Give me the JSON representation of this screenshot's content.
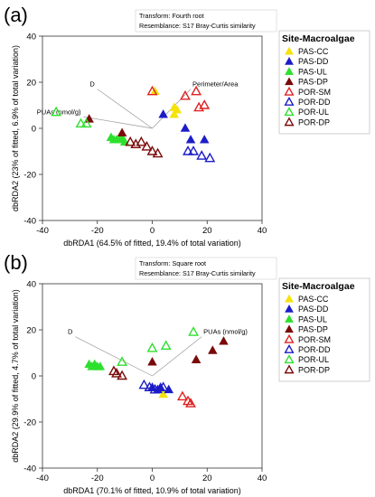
{
  "figure": {
    "panels": [
      {
        "panel_label": "(a)",
        "transform_line": "Transform: Fourth root",
        "resemblance_line": "Resemblance: S17 Bray-Curtis similarity",
        "legend_title": "Site-Macroalgae"
      },
      {
        "panel_label": "(b)",
        "transform_line": "Transform: Square root",
        "resemblance_line": "Resemblance: S17 Bray-Curtis similarity",
        "legend_title": "Site-Macroalgae"
      }
    ]
  },
  "chart_data": [
    {
      "type": "scatter",
      "title": "",
      "xlabel": "dbRDA1 (64.5% of fitted, 19.4% of total variation)",
      "ylabel": "dbRDA2 (23% of fitted, 6.9% of total variation)",
      "xlim": [
        -40,
        40
      ],
      "ylim": [
        -40,
        40
      ],
      "xticks": [
        -40,
        -20,
        0,
        20,
        40
      ],
      "yticks": [
        -40,
        -20,
        0,
        20,
        40
      ],
      "legend_position": "right",
      "vectors": [
        {
          "label": "Perimeter/Area",
          "x": 14,
          "y": 17
        },
        {
          "label": "D",
          "x": -20,
          "y": 17
        },
        {
          "label": "PUAs (nmol/g)",
          "x": -25,
          "y": 5
        }
      ],
      "series": [
        {
          "name": "PAS-CC",
          "marker": "filled",
          "color": "#f5e20a",
          "points": [
            [
              1,
              16
            ],
            [
              8,
              9
            ],
            [
              8,
              6
            ],
            [
              9,
              8
            ]
          ]
        },
        {
          "name": "PAS-DD",
          "marker": "filled",
          "color": "#1c1cc8",
          "points": [
            [
              4,
              6
            ],
            [
              12,
              0
            ],
            [
              14,
              -5
            ],
            [
              19,
              -5
            ]
          ]
        },
        {
          "name": "PAS-UL",
          "marker": "filled",
          "color": "#2ee02e",
          "points": [
            [
              -15,
              -4
            ],
            [
              -14,
              -5
            ],
            [
              -13,
              -5
            ],
            [
              -12,
              -5
            ],
            [
              -11,
              -4
            ],
            [
              -10,
              -6
            ]
          ]
        },
        {
          "name": "PAS-DP",
          "marker": "filled",
          "color": "#7a0a0a",
          "points": [
            [
              -23,
              4
            ],
            [
              -11,
              -2
            ]
          ]
        },
        {
          "name": "POR-SM",
          "marker": "open",
          "color": "#e02020",
          "points": [
            [
              0,
              16
            ],
            [
              12,
              14
            ],
            [
              16,
              16
            ],
            [
              17,
              9
            ],
            [
              19,
              10
            ]
          ]
        },
        {
          "name": "POR-DD",
          "marker": "open",
          "color": "#1c1cc8",
          "points": [
            [
              13,
              -10
            ],
            [
              15,
              -10
            ],
            [
              18,
              -12
            ],
            [
              21,
              -13
            ]
          ]
        },
        {
          "name": "POR-UL",
          "marker": "open",
          "color": "#2ee02e",
          "points": [
            [
              -35,
              7
            ],
            [
              -26,
              2
            ],
            [
              -24,
              2
            ]
          ]
        },
        {
          "name": "POR-DP",
          "marker": "open",
          "color": "#7a0a0a",
          "points": [
            [
              -8,
              -6
            ],
            [
              -6,
              -7
            ],
            [
              -2,
              -8
            ],
            [
              0,
              -10
            ],
            [
              2,
              -11
            ],
            [
              -4,
              -6
            ]
          ]
        }
      ]
    },
    {
      "type": "scatter",
      "title": "",
      "xlabel": "dbRDA1 (70.1% of fitted, 10.9% of total variation)",
      "ylabel": "dbRDA2 (29.9% of fitted, 4.7% of total variation)",
      "xlim": [
        -40,
        40
      ],
      "ylim": [
        -40,
        40
      ],
      "xticks": [
        -40,
        -20,
        0,
        20,
        40
      ],
      "yticks": [
        -40,
        -20,
        0,
        20,
        40
      ],
      "legend_position": "right",
      "vectors": [
        {
          "label": "PUAs (nmol/g)",
          "x": 18,
          "y": 17
        },
        {
          "label": "D",
          "x": -28,
          "y": 17
        }
      ],
      "series": [
        {
          "name": "PAS-CC",
          "marker": "filled",
          "color": "#f5e20a",
          "points": [
            [
              3,
              -6
            ],
            [
              4,
              -8
            ]
          ]
        },
        {
          "name": "PAS-DD",
          "marker": "filled",
          "color": "#1c1cc8",
          "points": [
            [
              0,
              -5
            ],
            [
              2,
              -6
            ],
            [
              3,
              -5
            ],
            [
              6,
              -6
            ]
          ]
        },
        {
          "name": "PAS-UL",
          "marker": "filled",
          "color": "#2ee02e",
          "points": [
            [
              -23,
              5
            ],
            [
              -22,
              4
            ],
            [
              -21,
              5
            ],
            [
              -20,
              4
            ],
            [
              -19,
              4
            ]
          ]
        },
        {
          "name": "PAS-DP",
          "marker": "filled",
          "color": "#7a0a0a",
          "points": [
            [
              0,
              6
            ],
            [
              16,
              7
            ],
            [
              22,
              11
            ],
            [
              26,
              15
            ]
          ]
        },
        {
          "name": "POR-SM",
          "marker": "open",
          "color": "#e02020",
          "points": [
            [
              11,
              -9
            ],
            [
              13,
              -11
            ],
            [
              14,
              -12
            ]
          ]
        },
        {
          "name": "POR-DD",
          "marker": "open",
          "color": "#1c1cc8",
          "points": [
            [
              -3,
              -4
            ],
            [
              -1,
              -5
            ],
            [
              1,
              -6
            ],
            [
              4,
              -5
            ]
          ]
        },
        {
          "name": "POR-UL",
          "marker": "open",
          "color": "#2ee02e",
          "points": [
            [
              -11,
              6
            ],
            [
              0,
              12
            ],
            [
              5,
              13
            ],
            [
              15,
              19
            ]
          ]
        },
        {
          "name": "POR-DP",
          "marker": "open",
          "color": "#7a0a0a",
          "points": [
            [
              -14,
              2
            ],
            [
              -13,
              1
            ],
            [
              -11,
              0
            ]
          ]
        }
      ]
    }
  ]
}
